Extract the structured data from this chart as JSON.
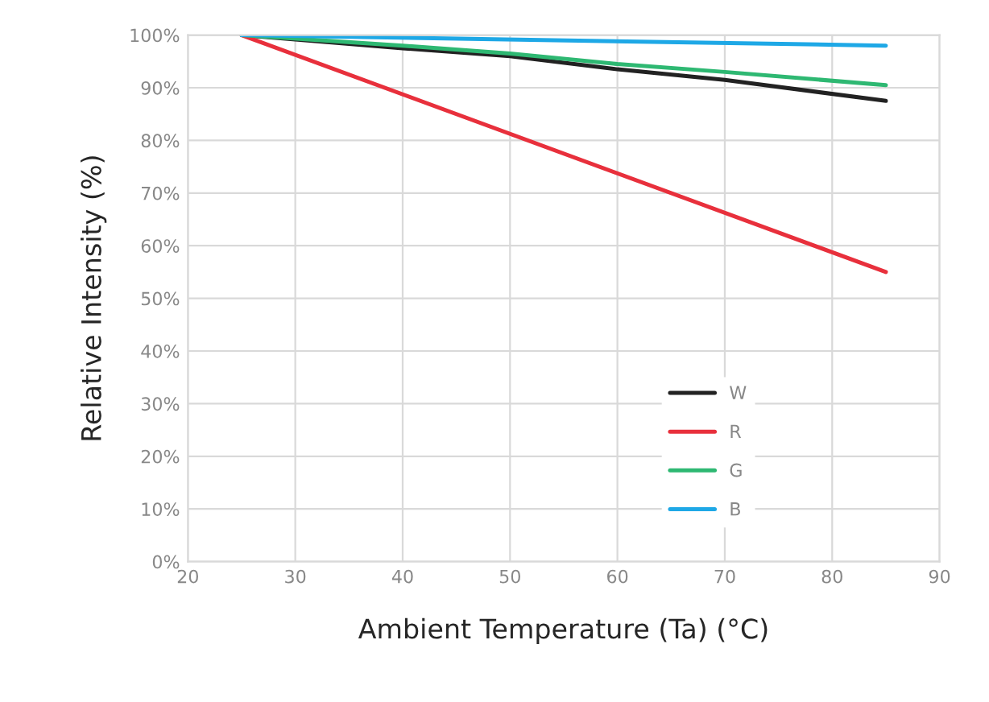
{
  "chart_data": {
    "type": "line",
    "xlabel": "Ambient Temperature (Ta) (°C)",
    "ylabel": "Relative Intensity (%)",
    "xlim": [
      20,
      90
    ],
    "xticks": [
      20,
      30,
      40,
      50,
      60,
      70,
      80,
      90
    ],
    "ylim": [
      0,
      100
    ],
    "yticks": [
      {
        "value": 0,
        "label": "0%"
      },
      {
        "value": 10,
        "label": "10%"
      },
      {
        "value": 20,
        "label": "20%"
      },
      {
        "value": 30,
        "label": "30%"
      },
      {
        "value": 40,
        "label": "40%"
      },
      {
        "value": 50,
        "label": "50%"
      },
      {
        "value": 60,
        "label": "60%"
      },
      {
        "value": 70,
        "label": "70%"
      },
      {
        "value": 80,
        "label": "80%"
      },
      {
        "value": 90,
        "label": "90%"
      },
      {
        "value": 100,
        "label": "100%"
      }
    ],
    "grid": true,
    "legend": "bottom right",
    "marker": "none",
    "line_style": "solid",
    "series": [
      {
        "name": "W",
        "color": "#222222",
        "x": [
          25,
          40,
          50,
          60,
          70,
          85
        ],
        "values": [
          100,
          97.5,
          96,
          93.5,
          91.5,
          87.5
        ]
      },
      {
        "name": "R",
        "color": "#e8303c",
        "x": [
          25,
          85
        ],
        "values": [
          100,
          55
        ]
      },
      {
        "name": "G",
        "color": "#2eb872",
        "x": [
          25,
          40,
          50,
          60,
          70,
          85
        ],
        "values": [
          100,
          98,
          96.5,
          94.5,
          93,
          90.5
        ]
      },
      {
        "name": "B",
        "color": "#1ea8e6",
        "x": [
          25,
          85
        ],
        "values": [
          100,
          98
        ]
      }
    ]
  }
}
